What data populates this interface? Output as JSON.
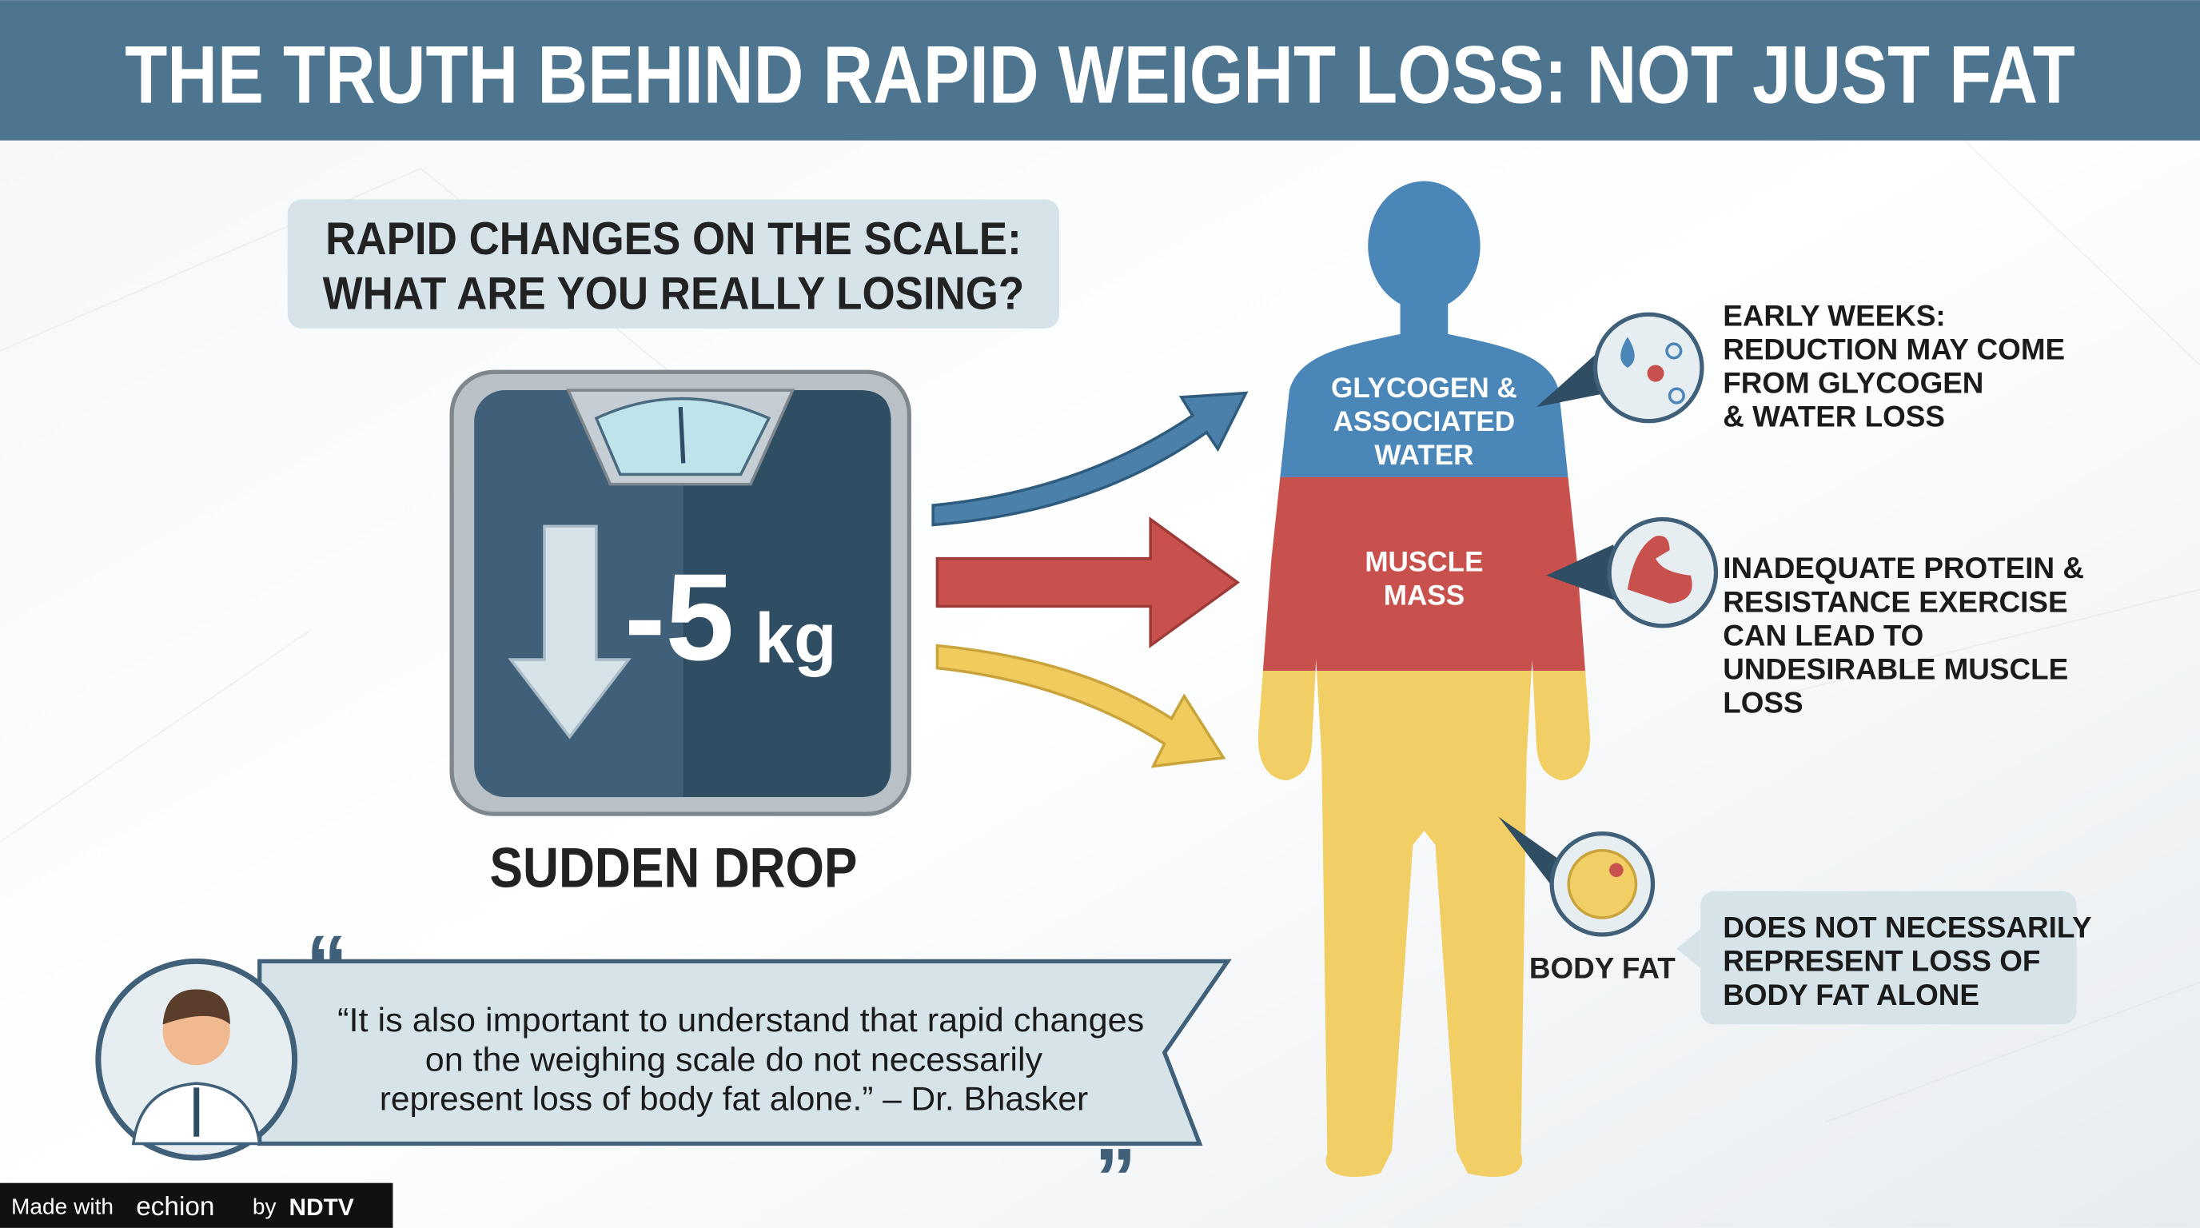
{
  "header": {
    "title": "THE TRUTH BEHIND RAPID WEIGHT LOSS: NOT JUST FAT"
  },
  "question": {
    "lines": [
      "RAPID CHANGES ON THE SCALE:",
      "WHAT ARE YOU REALLY LOSING?"
    ]
  },
  "scale": {
    "reading": "-5",
    "unit": "kg",
    "caption": "SUDDEN DROP"
  },
  "body": {
    "glycogen": [
      "GLYCOGEN &",
      "ASSOCIATED",
      "WATER"
    ],
    "muscle": [
      "MUSCLE",
      "MASS"
    ],
    "fat": "BODY FAT"
  },
  "callouts": [
    {
      "lines": [
        "EARLY WEEKS:",
        "REDUCTION MAY COME",
        "FROM GLYCOGEN",
        "& WATER LOSS"
      ]
    },
    {
      "lines": [
        "INADEQUATE PROTEIN &",
        "RESISTANCE EXERCISE",
        "CAN LEAD TO",
        "UNDESIRABLE MUSCLE",
        "LOSS"
      ]
    },
    {
      "lines": [
        "DOES NOT NECESSARILY",
        "REPRESENT LOSS OF",
        "BODY FAT ALONE"
      ]
    }
  ],
  "quote": {
    "lines": [
      "“It is also important to understand that rapid changes",
      "on the weighing scale do not necessarily",
      "represent loss of body fat alone.” – Dr. Bhasker"
    ]
  },
  "footer": {
    "made_with": "Made with",
    "brand": "echion",
    "by": "by",
    "partner": "NDTV"
  }
}
